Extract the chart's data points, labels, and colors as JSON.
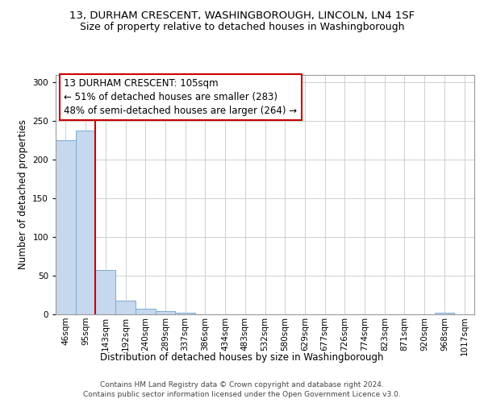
{
  "title": "13, DURHAM CRESCENT, WASHINGBOROUGH, LINCOLN, LN4 1SF",
  "subtitle": "Size of property relative to detached houses in Washingborough",
  "xlabel": "Distribution of detached houses by size in Washingborough",
  "ylabel": "Number of detached properties",
  "bar_values": [
    225,
    238,
    57,
    18,
    7,
    4,
    2,
    0,
    0,
    0,
    0,
    0,
    0,
    0,
    0,
    0,
    0,
    0,
    0,
    2,
    0
  ],
  "bin_labels": [
    "46sqm",
    "95sqm",
    "143sqm",
    "192sqm",
    "240sqm",
    "289sqm",
    "337sqm",
    "386sqm",
    "434sqm",
    "483sqm",
    "532sqm",
    "580sqm",
    "629sqm",
    "677sqm",
    "726sqm",
    "774sqm",
    "823sqm",
    "871sqm",
    "920sqm",
    "968sqm",
    "1017sqm"
  ],
  "bar_color": "#c5d8ed",
  "bar_edge_color": "#7aadd4",
  "vline_x": 2.0,
  "vline_color": "#cc0000",
  "annotation_line1": "13 DURHAM CRESCENT: 105sqm",
  "annotation_line2": "← 51% of detached houses are smaller (283)",
  "annotation_line3": "48% of semi-detached houses are larger (264) →",
  "annotation_box_edge_color": "#cc0000",
  "ylim_max": 310,
  "yticks": [
    0,
    50,
    100,
    150,
    200,
    250,
    300
  ],
  "grid_color": "#c8c8c8",
  "background_color": "#ffffff",
  "footer_line1": "Contains HM Land Registry data © Crown copyright and database right 2024.",
  "footer_line2": "Contains public sector information licensed under the Open Government Licence v3.0.",
  "title_fontsize": 9.5,
  "subtitle_fontsize": 9,
  "axis_label_fontsize": 8.5,
  "annotation_fontsize": 8.5,
  "tick_fontsize": 7.5,
  "footer_fontsize": 6.5
}
